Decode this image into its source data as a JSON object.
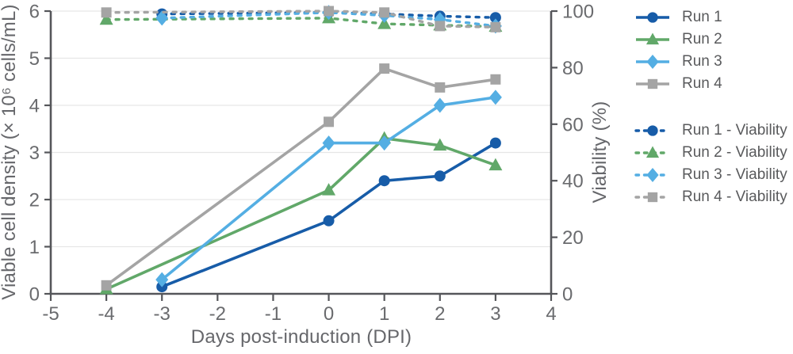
{
  "chart_data": {
    "type": "line",
    "title": "",
    "xlabel": "Days post-induction (DPI)",
    "ylabel_left": "Viable cell density (× 10⁶ cells/mL)",
    "ylabel_right": "Viability (%)",
    "xlim": [
      -5,
      4
    ],
    "x_ticks": [
      -5,
      -4,
      -3,
      -2,
      -1,
      0,
      1,
      2,
      3,
      4
    ],
    "ylim_left": [
      0,
      6
    ],
    "y_ticks_left": [
      0,
      1,
      2,
      3,
      4,
      5,
      6
    ],
    "ylim_right": [
      0,
      100
    ],
    "y_ticks_right": [
      0,
      20,
      40,
      60,
      80,
      100
    ],
    "grid": "horizontal-at-left-axis-units",
    "legend_position": "right",
    "colors": {
      "run1": "#175ca8",
      "run2": "#61a869",
      "run3": "#54aee3",
      "run4": "#a4a4a4",
      "axis": "#55565a",
      "gridline": "#e6e6e6",
      "tick_label": "#6a6b6e",
      "legend_text": "#595a5c"
    },
    "series": [
      {
        "name": "Run 1",
        "axis": "left",
        "style": "solid",
        "marker": "circle",
        "color": "#175ca8",
        "x": [
          -3,
          0,
          1,
          2,
          3
        ],
        "y": [
          0.15,
          1.55,
          2.4,
          2.5,
          3.2
        ]
      },
      {
        "name": "Run 2",
        "axis": "left",
        "style": "solid",
        "marker": "triangle",
        "color": "#61a869",
        "x": [
          -4,
          0,
          1,
          2,
          3
        ],
        "y": [
          0.1,
          2.2,
          3.3,
          3.15,
          2.73
        ]
      },
      {
        "name": "Run 3",
        "axis": "left",
        "style": "solid",
        "marker": "diamond",
        "color": "#54aee3",
        "x": [
          -3,
          0,
          1,
          2,
          3
        ],
        "y": [
          0.3,
          3.2,
          3.2,
          4.0,
          4.17
        ]
      },
      {
        "name": "Run 4",
        "axis": "left",
        "style": "solid",
        "marker": "square",
        "color": "#a4a4a4",
        "x": [
          -4,
          0,
          1,
          2,
          3
        ],
        "y": [
          0.18,
          3.65,
          4.78,
          4.38,
          4.55
        ]
      },
      {
        "name": "Run 1 - Viability",
        "axis": "right",
        "style": "dashed",
        "marker": "circle",
        "color": "#175ca8",
        "x": [
          -3,
          0,
          1,
          2,
          3
        ],
        "y": [
          99,
          99.5,
          99,
          98.2,
          97.7
        ]
      },
      {
        "name": "Run 2 - Viability",
        "axis": "right",
        "style": "dashed",
        "marker": "triangle",
        "color": "#61a869",
        "x": [
          -4,
          0,
          1,
          2,
          3
        ],
        "y": [
          97,
          97.5,
          95.5,
          95,
          94.5
        ]
      },
      {
        "name": "Run 3 - Viability",
        "axis": "right",
        "style": "dashed",
        "marker": "diamond",
        "color": "#54aee3",
        "x": [
          -3,
          0,
          1,
          2,
          3
        ],
        "y": [
          97.5,
          99.5,
          98.5,
          97,
          94.7
        ]
      },
      {
        "name": "Run 4 - Viability",
        "axis": "right",
        "style": "dashed",
        "marker": "square",
        "color": "#a4a4a4",
        "x": [
          -4,
          0,
          1,
          2,
          3
        ],
        "y": [
          99.5,
          100,
          99.5,
          94.7,
          94.3
        ]
      }
    ]
  }
}
